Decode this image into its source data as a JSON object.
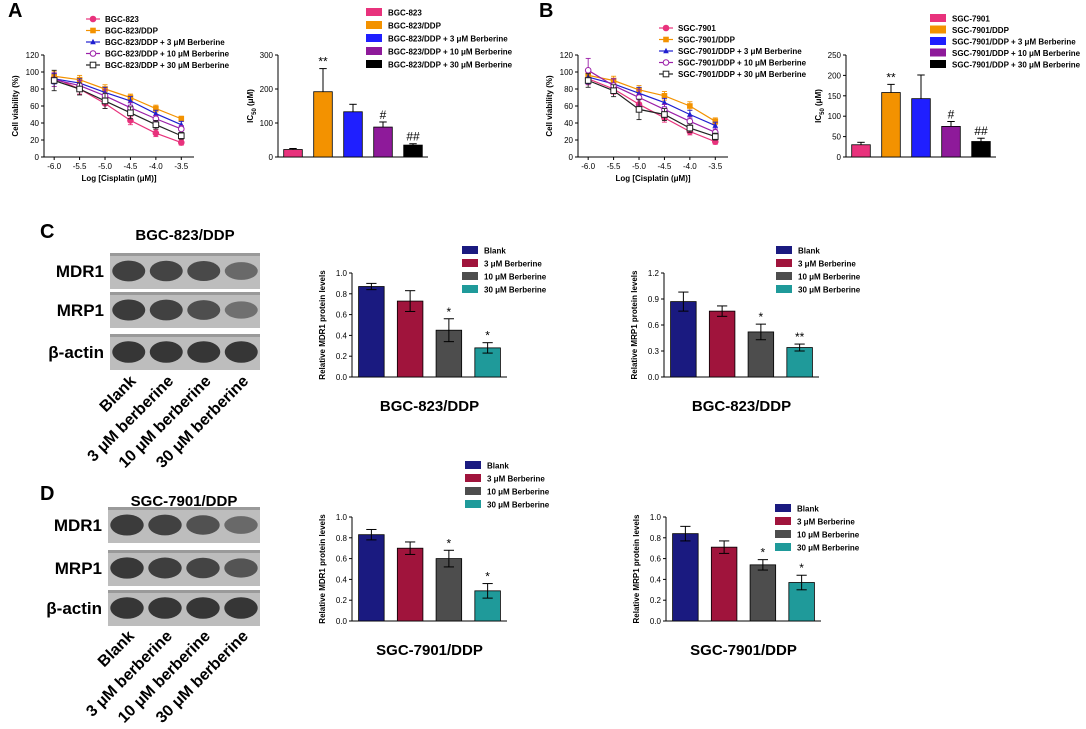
{
  "figure": {
    "panel_a": {
      "letter": "A",
      "line_chart": {
        "type": "line",
        "xlabel": "Log [Cisplatin (μM)]",
        "ylabel": "Cell viability (%)",
        "xlim": [
          -6.2,
          -3.25
        ],
        "ylim": [
          0,
          120
        ],
        "x": [
          -6.0,
          -5.5,
          -5.0,
          -4.5,
          -4.0,
          -3.5
        ],
        "xticks": [
          "-6.0",
          "-5.5",
          "-5.0",
          "-4.5",
          "-4.0",
          "-3.5"
        ],
        "yticks": [
          "0",
          "20",
          "40",
          "60",
          "80",
          "100",
          "120"
        ],
        "series": [
          {
            "name": "BGC-823",
            "color": "#e8327c",
            "marker": "circle",
            "values": [
              93,
              80,
              63,
              43,
              28,
              17
            ],
            "errors": [
              6,
              6,
              6,
              5,
              4,
              3
            ]
          },
          {
            "name": "BGC-823/DDP",
            "color": "#f39200",
            "marker": "square",
            "values": [
              95,
              91,
              80,
              70,
              57,
              45
            ],
            "errors": [
              6,
              5,
              5,
              4,
              4,
              3
            ]
          },
          {
            "name": "BGC-823/DDP + 3 μM Berberine",
            "color": "#1f1fd0",
            "marker": "triangle",
            "values": [
              92,
              87,
              76,
              66,
              51,
              38
            ],
            "errors": [
              6,
              5,
              6,
              5,
              4,
              4
            ]
          },
          {
            "name": "BGC-823/DDP + 10 μM Berberine",
            "color": "#9b1fa8",
            "marker": "circle-open",
            "values": [
              91,
              84,
              72,
              58,
              45,
              33
            ],
            "errors": [
              8,
              6,
              7,
              6,
              4,
              4
            ]
          },
          {
            "name": "BGC-823/DDP + 30 μM Berberine",
            "color": "#222222",
            "marker": "square-open",
            "values": [
              90,
              80,
              66,
              52,
              38,
              25
            ],
            "errors": [
              12,
              7,
              9,
              7,
              5,
              4
            ]
          }
        ]
      },
      "bar_chart": {
        "type": "bar",
        "ylabel": "IC",
        "ylabel_sub": "50",
        "ylabel_unit": " (μM)",
        "ylim": [
          0,
          300
        ],
        "yticks": [
          "0",
          "100",
          "200",
          "300"
        ],
        "categories": [
          "BGC-823",
          "BGC-823/DDP",
          "BGC-823/DDP + 3 μM Berberine",
          "BGC-823/DDP + 10 μM Berberine",
          "BGC-823/DDP + 30 μM Berberine"
        ],
        "values": [
          22,
          192,
          133,
          88,
          35
        ],
        "errors": [
          3,
          68,
          22,
          15,
          4
        ],
        "colors": [
          "#e8327c",
          "#f39200",
          "#1f1fff",
          "#8e1a9a",
          "#000000"
        ],
        "sig": [
          "",
          "**",
          "",
          "#",
          "##"
        ]
      }
    },
    "panel_b": {
      "letter": "B",
      "line_chart": {
        "type": "line",
        "xlabel": "Log [Cisplatin (μM)]",
        "ylabel": "Cell viability (%)",
        "xlim": [
          -6.2,
          -3.25
        ],
        "ylim": [
          0,
          120
        ],
        "x": [
          -6.0,
          -5.5,
          -5.0,
          -4.5,
          -4.0,
          -3.5
        ],
        "xticks": [
          "-6.0",
          "-5.5",
          "-5.0",
          "-4.5",
          "-4.0",
          "-3.5"
        ],
        "yticks": [
          "0",
          "20",
          "40",
          "60",
          "80",
          "100",
          "120"
        ],
        "series": [
          {
            "name": "SGC-7901",
            "color": "#e8327c",
            "marker": "circle",
            "values": [
              92,
              80,
              62,
              46,
              30,
              18
            ],
            "errors": [
              7,
              6,
              6,
              5,
              4,
              3
            ]
          },
          {
            "name": "SGC-7901/DDP",
            "color": "#f39200",
            "marker": "square",
            "values": [
              96,
              90,
              79,
              72,
              60,
              42
            ],
            "errors": [
              6,
              5,
              5,
              5,
              5,
              4
            ]
          },
          {
            "name": "SGC-7901/DDP + 3 μM Berberine",
            "color": "#1f1fd0",
            "marker": "triangle",
            "values": [
              94,
              86,
              75,
              64,
              50,
              37
            ],
            "errors": [
              8,
              6,
              7,
              5,
              5,
              4
            ]
          },
          {
            "name": "SGC-7901/DDP + 10 μM Berberine",
            "color": "#9b1fa8",
            "marker": "circle-open",
            "values": [
              102,
              84,
              70,
              56,
              42,
              29
            ],
            "errors": [
              14,
              8,
              9,
              6,
              5,
              4
            ]
          },
          {
            "name": "SGC-7901/DDP + 30 μM Berberine",
            "color": "#222222",
            "marker": "square-open",
            "values": [
              90,
              78,
              56,
              50,
              34,
              24
            ],
            "errors": [
              8,
              7,
              12,
              7,
              5,
              4
            ]
          }
        ]
      },
      "bar_chart": {
        "type": "bar",
        "ylabel": "IC",
        "ylabel_sub": "50",
        "ylabel_unit": " (μM)",
        "ylim": [
          0,
          250
        ],
        "yticks": [
          "0",
          "50",
          "100",
          "150",
          "200",
          "250"
        ],
        "categories": [
          "SGC-7901",
          "SGC-7901/DDP",
          "SGC-7901/DDP + 3 μM Berberine",
          "SGC-7901/DDP + 10 μM Berberine",
          "SGC-7901/DDP + 30 μM Berberine"
        ],
        "values": [
          30,
          158,
          143,
          75,
          38
        ],
        "errors": [
          6,
          20,
          58,
          12,
          8
        ],
        "colors": [
          "#e8327c",
          "#f39200",
          "#1f1fff",
          "#8e1a9a",
          "#000000"
        ],
        "sig": [
          "",
          "**",
          "",
          "#",
          "##"
        ]
      }
    },
    "panel_c": {
      "letter": "C",
      "blot_title": "BGC-823/DDP",
      "rows": [
        "MDR1",
        "MRP1",
        "β-actin"
      ],
      "lanes": [
        "Blank",
        "3 μM berberine",
        "10 μM berberine",
        "30 μM berberine"
      ],
      "band_intensity": [
        [
          0.85,
          0.82,
          0.78,
          0.55
        ],
        [
          0.88,
          0.84,
          0.75,
          0.5
        ],
        [
          0.92,
          0.92,
          0.92,
          0.92
        ]
      ],
      "charts": [
        {
          "type": "bar",
          "caption": "BGC-823/DDP",
          "ylabel": "Relative MDR1 protein levels",
          "ylim": [
            0,
            1.0
          ],
          "yticks": [
            "0.0",
            "0.2",
            "0.4",
            "0.6",
            "0.8",
            "1.0"
          ],
          "categories": [
            "Blank",
            "3 μM Berberine",
            "10 μM Berberine",
            "30 μM Berberine"
          ],
          "values": [
            0.87,
            0.73,
            0.45,
            0.28
          ],
          "errors": [
            0.03,
            0.1,
            0.11,
            0.05
          ],
          "colors": [
            "#1a1a80",
            "#a0143c",
            "#4d4d4d",
            "#1f9a9a"
          ],
          "sig": [
            "",
            "",
            "*",
            "*"
          ]
        },
        {
          "type": "bar",
          "caption": "BGC-823/DDP",
          "ylabel": "Relative MRP1 protein levels",
          "ylim": [
            0,
            1.2
          ],
          "yticks": [
            "0.0",
            "0.3",
            "0.6",
            "0.9",
            "1.2"
          ],
          "categories": [
            "Blank",
            "3 μM Berberine",
            "10 μM Berberine",
            "30 μM Berberine"
          ],
          "values": [
            0.87,
            0.76,
            0.52,
            0.34
          ],
          "errors": [
            0.11,
            0.06,
            0.09,
            0.04
          ],
          "colors": [
            "#1a1a80",
            "#a0143c",
            "#4d4d4d",
            "#1f9a9a"
          ],
          "sig": [
            "",
            "",
            "*",
            "**"
          ]
        }
      ]
    },
    "panel_d": {
      "letter": "D",
      "blot_title": "SGC-7901/DDP",
      "rows": [
        "MDR1",
        "MRP1",
        "β-actin"
      ],
      "lanes": [
        "Blank",
        "3 μM berberine",
        "10 μM berberine",
        "30 μM berberine"
      ],
      "band_intensity": [
        [
          0.88,
          0.84,
          0.72,
          0.55
        ],
        [
          0.9,
          0.86,
          0.82,
          0.7
        ],
        [
          0.92,
          0.92,
          0.92,
          0.92
        ]
      ],
      "charts": [
        {
          "type": "bar",
          "caption": "SGC-7901/DDP",
          "ylabel": "Relative MDR1 protein levels",
          "ylim": [
            0,
            1.0
          ],
          "yticks": [
            "0.0",
            "0.2",
            "0.4",
            "0.6",
            "0.8",
            "1.0"
          ],
          "categories": [
            "Blank",
            "3 μM Berberine",
            "10 μM Berberine",
            "30 μM Berberine"
          ],
          "values": [
            0.83,
            0.7,
            0.6,
            0.29
          ],
          "errors": [
            0.05,
            0.06,
            0.08,
            0.07
          ],
          "colors": [
            "#1a1a80",
            "#a0143c",
            "#4d4d4d",
            "#1f9a9a"
          ],
          "sig": [
            "",
            "",
            "*",
            "*"
          ]
        },
        {
          "type": "bar",
          "caption": "SGC-7901/DDP",
          "ylabel": "Relative MRP1 protein levels",
          "ylim": [
            0,
            1.0
          ],
          "yticks": [
            "0.0",
            "0.2",
            "0.4",
            "0.6",
            "0.8",
            "1.0"
          ],
          "categories": [
            "Blank",
            "3 μM Berberine",
            "10 μM Berberine",
            "30 μM Berberine"
          ],
          "values": [
            0.84,
            0.71,
            0.54,
            0.37
          ],
          "errors": [
            0.07,
            0.06,
            0.05,
            0.07
          ],
          "colors": [
            "#1a1a80",
            "#a0143c",
            "#4d4d4d",
            "#1f9a9a"
          ],
          "sig": [
            "",
            "",
            "*",
            "*"
          ]
        }
      ]
    }
  }
}
